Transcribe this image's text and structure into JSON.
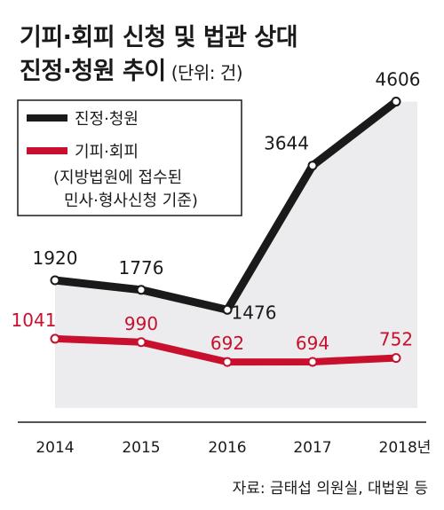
{
  "title_line1": "기피·회피 신청 및 법관 상대",
  "title_line2": "진정·청원 추이",
  "unit": "(단위: 건)",
  "source": "자료: 금태섭 의원실, 대법원 등",
  "colors": {
    "series1": "#1a1a1a",
    "series2": "#c8102e",
    "area": "#ececee"
  },
  "chart_data": {
    "type": "line",
    "x": [
      "2014",
      "2015",
      "2016",
      "2017",
      "2018년"
    ],
    "series": [
      {
        "name": "진정·청원",
        "values": [
          1920,
          1776,
          1476,
          3644,
          4606
        ]
      },
      {
        "name": "기피·회피",
        "name_note": [
          "(지방법원에 접수된",
          "민사·형사신청 기준)"
        ],
        "values": [
          1041,
          990,
          692,
          694,
          752
        ]
      }
    ],
    "ylim": [
      0,
      4800
    ],
    "grid": false,
    "legend": "top-left"
  }
}
